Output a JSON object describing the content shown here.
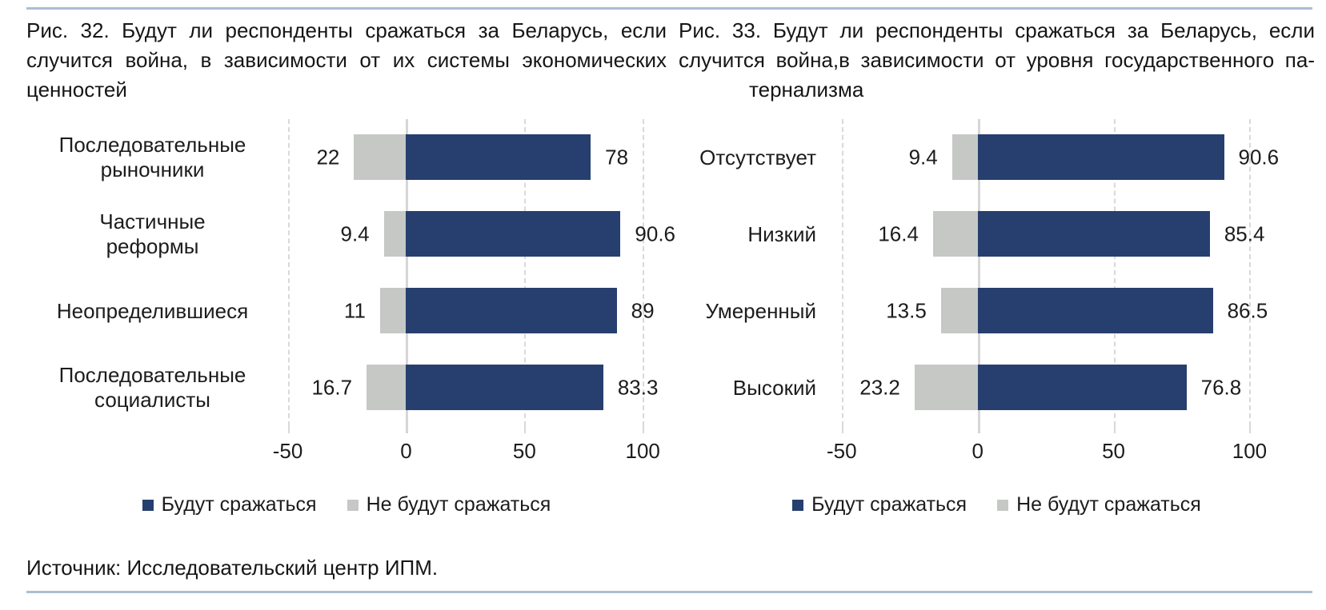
{
  "rule_color": "#aebdd3",
  "source_line": "Источник: Исследовательский центр ИПМ.",
  "colors": {
    "bar_positive": "#263f6e",
    "bar_negative": "#c6c8c6",
    "gridline": "#d9d9d9",
    "zero_line": "#d6d6d6",
    "rule": "#aebdd3"
  },
  "chart_data": [
    {
      "type": "bar",
      "orientation": "horizontal-diverging",
      "figure_label": "Рис. 32.",
      "title": "Будут ли респонденты сражаться за Беларусь, если случится война, в зависимости от их системы экономических ценностей",
      "title_lines": [
        "Рис. 32.  Будут ли респонденты сражаться за Беларусь, если",
        "случится война, в зависимости от их системы экономических",
        "ценностей"
      ],
      "categories": [
        "Последовательные рыночники",
        "Частичные реформы",
        "Неопределившиеся",
        "Последовательные социалисты"
      ],
      "series": [
        {
          "name": "Будут сражаться",
          "side": "positive",
          "color": "#263f6e",
          "values": [
            78,
            90.6,
            89,
            83.3
          ],
          "labels": [
            "78",
            "90.6",
            "89",
            "83.3"
          ]
        },
        {
          "name": "Не будут сражаться",
          "side": "negative",
          "color": "#c6c8c6",
          "values": [
            22,
            9.4,
            11,
            16.7
          ],
          "labels": [
            "22",
            "9.4",
            "11",
            "16.7"
          ]
        }
      ],
      "xticks": [
        {
          "value": -50,
          "label": "-50"
        },
        {
          "value": 0,
          "label": "0"
        },
        {
          "value": 50,
          "label": "50"
        },
        {
          "value": 100,
          "label": "100"
        }
      ],
      "xlim": [
        -60,
        105
      ],
      "grid": "vertical-dashed",
      "legend_position": "bottom",
      "legend": [
        "Будут сражаться",
        "Не будут сражаться"
      ]
    },
    {
      "type": "bar",
      "orientation": "horizontal-diverging",
      "figure_label": "Рис. 33.",
      "title": "Будут ли респонденты сражаться за Беларусь, если случится война, в зависимости от уровня государственного патернализма",
      "title_lines": [
        "Рис. 33.   Будут ли респонденты сражаться за Беларусь, если",
        "случится война,в зависимости от уровня государственного па-",
        "тернализма"
      ],
      "categories": [
        "Отсутствует",
        "Низкий",
        "Умеренный",
        "Высокий"
      ],
      "series": [
        {
          "name": "Будут сражаться",
          "side": "positive",
          "color": "#263f6e",
          "values": [
            90.6,
            85.4,
            86.5,
            76.8
          ],
          "labels": [
            "90.6",
            "85.4",
            "86.5",
            "76.8"
          ]
        },
        {
          "name": "Не будут сражаться",
          "side": "negative",
          "color": "#c6c8c6",
          "values": [
            9.4,
            16.4,
            13.5,
            23.2
          ],
          "labels": [
            "9.4",
            "16.4",
            "13.5",
            "23.2"
          ]
        }
      ],
      "xticks": [
        {
          "value": -50,
          "label": "-50"
        },
        {
          "value": 0,
          "label": "0"
        },
        {
          "value": 50,
          "label": "50"
        },
        {
          "value": 100,
          "label": "100"
        }
      ],
      "xlim": [
        -57,
        124
      ],
      "grid": "vertical-dashed",
      "legend_position": "bottom",
      "legend": [
        "Будут сражаться",
        "Не будут сражаться"
      ]
    }
  ]
}
